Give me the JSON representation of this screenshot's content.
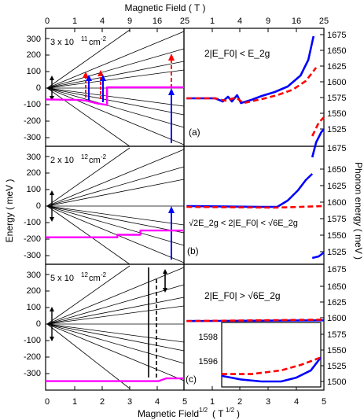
{
  "top_axis": {
    "label": "Magnetic Field  ( T )",
    "ticks": [
      "0",
      "1",
      "4",
      "9",
      "16",
      "25"
    ]
  },
  "bottom_axis": {
    "label": "Magnetic Field ¹ᐟ²  ( T¹ᐟ² )",
    "label_main": "Magnetic Field",
    "label_exp": "1/2",
    "label_unit": "( T",
    "label_unit_exp": "1/2",
    "label_close": ")",
    "ticks": [
      "0",
      "1",
      "2",
      "3",
      "4",
      "5"
    ]
  },
  "left_axis": {
    "label": "Energy  ( meV )",
    "ticks": [
      "300",
      "200",
      "100",
      "0",
      "-100",
      "-200",
      "-300"
    ]
  },
  "right_axis": {
    "label": "Phonon energy  ( meV )",
    "ticks_top": [
      "1675",
      "1650",
      "1625",
      "1600",
      "1575",
      "1550",
      "1525"
    ],
    "ticks_mid": [
      "1675",
      "1650",
      "1625",
      "1600",
      "1575",
      "1550",
      "1525"
    ],
    "ticks_bot": [
      "1675",
      "1650",
      "1625",
      "1600",
      "1575",
      "1550",
      "1525",
      "1500"
    ]
  },
  "colors": {
    "magenta": "#ff00ff",
    "blue": "#0000ff",
    "red": "#ff0000",
    "black": "#000000"
  },
  "panels": [
    {
      "id": "a",
      "density_base": "3 x 10",
      "density_exp": "11",
      "density_unit": "cm",
      "density_unit_exp": "-2",
      "condition": "2|E_F0| < E_2g",
      "letter": "(a)"
    },
    {
      "id": "b",
      "density_base": "2 x 10",
      "density_exp": "12",
      "density_unit": "cm",
      "density_unit_exp": "-2",
      "condition": "√2E_2g < 2|E_F0| < √6E_2g",
      "letter": "(b)"
    },
    {
      "id": "c",
      "density_base": "5 x 10",
      "density_exp": "12",
      "density_unit": "cm",
      "density_unit_exp": "-2",
      "condition": "2|E_F0| > √6E_2g",
      "letter": "(c)"
    }
  ],
  "inset": {
    "ticks": [
      "1598",
      "1596"
    ]
  },
  "chart_data": [
    {
      "type": "line",
      "panel": "a-left",
      "xlabel": "Magnetic Field 1/2 (T^1/2)",
      "ylabel": "Energy (meV)",
      "xlim": [
        0,
        5.4
      ],
      "ylim": [
        -350,
        350
      ],
      "series": [
        {
          "color": "#ff00ff",
          "points": [
            [
              0,
              -72
            ],
            [
              1.3,
              -75
            ],
            [
              1.6,
              -80
            ],
            [
              2.0,
              -95
            ],
            [
              2.4,
              -105
            ],
            [
              2.4,
              0
            ],
            [
              5.4,
              0
            ]
          ]
        }
      ]
    },
    {
      "type": "line",
      "panel": "a-right",
      "xlim": [
        0,
        5.4
      ],
      "ylim": [
        1525,
        1675
      ],
      "series": [
        {
          "color": "#0000ff",
          "style": "solid",
          "points": [
            [
              0.1,
              1586
            ],
            [
              1.2,
              1586
            ],
            [
              1.5,
              1582
            ],
            [
              1.7,
              1588
            ],
            [
              1.85,
              1582
            ],
            [
              2.05,
              1590
            ],
            [
              2.2,
              1580
            ],
            [
              2.6,
              1584
            ],
            [
              3.0,
              1589
            ],
            [
              3.5,
              1594
            ],
            [
              4.0,
              1601
            ],
            [
              4.5,
              1615
            ],
            [
              4.8,
              1635
            ],
            [
              5.0,
              1665
            ]
          ]
        },
        {
          "color": "#0000ff",
          "style": "solid",
          "points": [
            [
              4.95,
              1511
            ],
            [
              5.1,
              1530
            ],
            [
              5.3,
              1543
            ],
            [
              5.4,
              1547
            ]
          ]
        },
        {
          "color": "#ff0000",
          "style": "dashed",
          "points": [
            [
              0.1,
              1586
            ],
            [
              1.2,
              1586
            ],
            [
              1.6,
              1583
            ],
            [
              2.0,
              1587
            ],
            [
              2.3,
              1580
            ],
            [
              3.0,
              1585
            ],
            [
              3.6,
              1590
            ],
            [
              4.2,
              1597
            ],
            [
              4.7,
              1608
            ],
            [
              5.1,
              1625
            ]
          ]
        },
        {
          "color": "#ff0000",
          "style": "dashed",
          "points": [
            [
              4.95,
              1538
            ],
            [
              5.2,
              1555
            ],
            [
              5.4,
              1562
            ]
          ]
        }
      ]
    },
    {
      "type": "line",
      "panel": "b-left",
      "xlim": [
        0,
        5.4
      ],
      "ylim": [
        -350,
        350
      ],
      "series": [
        {
          "color": "#ff00ff",
          "points": [
            [
              0,
              -190
            ],
            [
              2.8,
              -190
            ],
            [
              2.8,
              -175
            ],
            [
              3.7,
              -175
            ],
            [
              3.7,
              -150
            ],
            [
              5.4,
              -150
            ]
          ]
        }
      ]
    },
    {
      "type": "line",
      "panel": "b-right",
      "xlim": [
        0,
        5.4
      ],
      "ylim": [
        1525,
        1675
      ],
      "series": [
        {
          "color": "#0000ff",
          "style": "solid",
          "points": [
            [
              0.1,
              1599
            ],
            [
              3.0,
              1598
            ],
            [
              3.6,
              1598
            ],
            [
              4.0,
              1606
            ],
            [
              4.4,
              1619
            ],
            [
              4.7,
              1632
            ],
            [
              4.95,
              1640
            ]
          ]
        },
        {
          "color": "#0000ff",
          "style": "solid",
          "points": [
            [
              4.95,
              1533
            ],
            [
              5.2,
              1535
            ],
            [
              5.4,
              1540
            ]
          ]
        },
        {
          "color": "#ff0000",
          "style": "dashed",
          "points": [
            [
              0.1,
              1598
            ],
            [
              3.5,
              1597
            ],
            [
              4.5,
              1598
            ],
            [
              5.4,
              1599
            ]
          ]
        }
      ]
    },
    {
      "type": "line",
      "panel": "c-left",
      "xlim": [
        0,
        5.4
      ],
      "ylim": [
        -350,
        350
      ],
      "series": [
        {
          "color": "#ff00ff",
          "points": [
            [
              0,
              -300
            ],
            [
              4.4,
              -300
            ],
            [
              4.7,
              -285
            ],
            [
              5.4,
              -285
            ]
          ]
        }
      ]
    },
    {
      "type": "line",
      "panel": "c-right",
      "xlim": [
        0,
        5.4
      ],
      "ylim": [
        1500,
        1675
      ],
      "series": [
        {
          "color": "#0000ff",
          "style": "solid",
          "points": [
            [
              0.1,
              1596
            ],
            [
              5.4,
              1597
            ]
          ]
        },
        {
          "color": "#ff0000",
          "style": "dashed",
          "points": [
            [
              0.1,
              1596
            ],
            [
              5.4,
              1598
            ]
          ]
        }
      ]
    },
    {
      "type": "line",
      "panel": "c-inset",
      "ylim": [
        1595.3,
        1598.8
      ],
      "series": [
        {
          "color": "#0000ff",
          "style": "solid",
          "points": [
            [
              0,
              1595.9
            ],
            [
              0.2,
              1595.7
            ],
            [
              0.4,
              1595.6
            ],
            [
              0.6,
              1595.6
            ],
            [
              0.75,
              1595.8
            ],
            [
              0.9,
              1596.2
            ],
            [
              1.0,
              1596.9
            ]
          ]
        },
        {
          "color": "#ff0000",
          "style": "dashed",
          "points": [
            [
              0,
              1596.0
            ],
            [
              0.3,
              1596.0
            ],
            [
              0.6,
              1596.2
            ],
            [
              0.8,
              1596.5
            ],
            [
              1.0,
              1596.9
            ]
          ]
        }
      ]
    }
  ]
}
